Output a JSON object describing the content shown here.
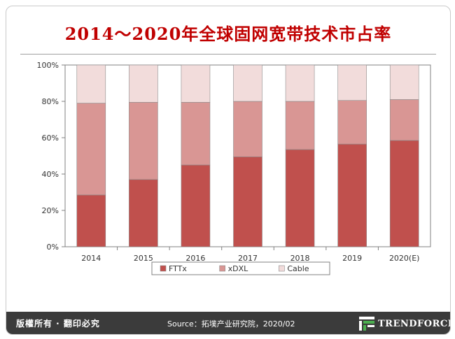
{
  "footer": {
    "copyright": "版權所有 · 翻印必究",
    "source": "Source：拓墣产业研究院，2020/02",
    "brand": "TRENDFORCE",
    "brand_icon": "trendforce-logo-icon"
  },
  "colors": {
    "FTTx": "#c0504d",
    "xDXL": "#d99694",
    "Cable": "#f2dcdb",
    "title": "#c00000"
  },
  "chart_data": {
    "type": "bar",
    "stacked": true,
    "title": "2014～2020年全球固网宽带技术市占率",
    "xlabel": "",
    "ylabel": "",
    "categories": [
      "2014",
      "2015",
      "2016",
      "2017",
      "2018",
      "2019",
      "2020(E)"
    ],
    "series": [
      {
        "name": "FTTx",
        "values": [
          28.5,
          37,
          45,
          49.5,
          53.5,
          56.5,
          58.5
        ]
      },
      {
        "name": "xDXL",
        "values": [
          50.5,
          42.5,
          34.5,
          30.5,
          26.5,
          24,
          22.5
        ]
      },
      {
        "name": "Cable",
        "values": [
          21,
          20.5,
          20.5,
          20,
          20,
          19.5,
          19
        ]
      }
    ],
    "ylim": [
      0,
      100
    ],
    "yticks": [
      "0%",
      "20%",
      "40%",
      "60%",
      "80%",
      "100%"
    ],
    "grid": false,
    "legend": "bottom"
  }
}
